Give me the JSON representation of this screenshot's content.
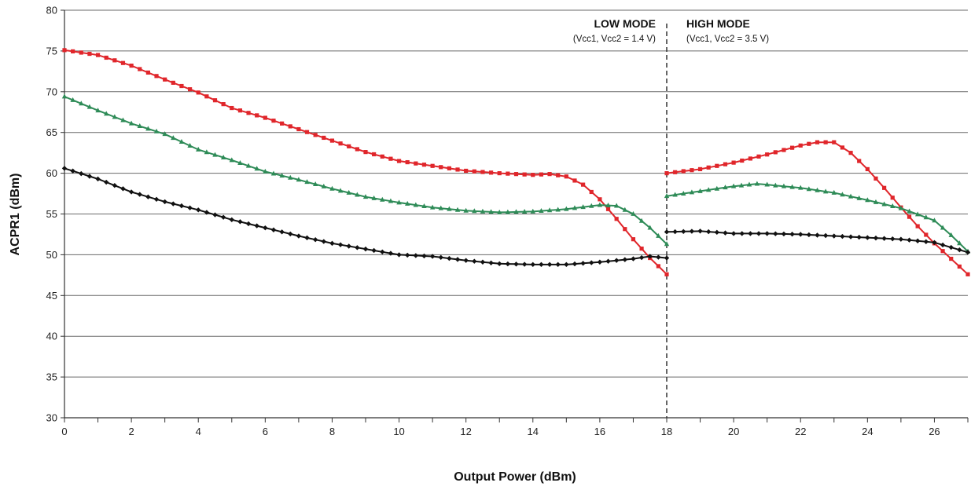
{
  "chart_data": {
    "type": "line",
    "xlabel": "Output Power (dBm)",
    "ylabel": "ACPR1 (dBm)",
    "xlim": [
      0,
      27
    ],
    "ylim": [
      30,
      80
    ],
    "xticks": [
      0,
      2,
      4,
      6,
      8,
      10,
      12,
      14,
      16,
      18,
      20,
      22,
      24,
      26
    ],
    "yticks": [
      30,
      35,
      40,
      45,
      50,
      55,
      60,
      65,
      70,
      75,
      80
    ],
    "grid": "horizontal",
    "mode_boundary_x": 18,
    "annotations": {
      "low_mode_title": "LOW MODE",
      "low_mode_sub": "(Vcc1, Vcc2 = 1.4 V)",
      "high_mode_title": "HIGH MODE",
      "high_mode_sub": "(Vcc1, Vcc2 = 3.5 V)"
    },
    "series": [
      {
        "color": "#e0262b",
        "marker": "square",
        "segments": [
          {
            "x": [
              0,
              1,
              2,
              3,
              4,
              5,
              6,
              7,
              8,
              9,
              10,
              11,
              12,
              13,
              14,
              14.5,
              15,
              15.5,
              16,
              16.5,
              17,
              17.5,
              18
            ],
            "y": [
              75.1,
              74.5,
              73.2,
              71.5,
              69.9,
              68.0,
              66.8,
              65.4,
              64.0,
              62.6,
              61.5,
              60.9,
              60.3,
              60.0,
              59.8,
              59.9,
              59.6,
              58.6,
              56.8,
              54.4,
              51.9,
              49.6,
              47.6
            ]
          },
          {
            "x": [
              18,
              19,
              20,
              21,
              22,
              22.5,
              23,
              23.5,
              24,
              24.5,
              25,
              25.5,
              26,
              26.5,
              27
            ],
            "y": [
              60.0,
              60.5,
              61.3,
              62.3,
              63.4,
              63.8,
              63.8,
              62.5,
              60.5,
              58.2,
              55.8,
              53.5,
              51.4,
              49.5,
              47.6
            ]
          }
        ]
      },
      {
        "color": "#2e8b57",
        "marker": "triangle",
        "segments": [
          {
            "x": [
              0,
              1,
              2,
              3,
              4,
              5,
              6,
              7,
              8,
              9,
              10,
              11,
              12,
              13,
              14,
              15,
              16,
              16.5,
              17,
              17.5,
              18
            ],
            "y": [
              69.4,
              67.7,
              66.1,
              64.8,
              62.9,
              61.6,
              60.2,
              59.2,
              58.1,
              57.1,
              56.4,
              55.8,
              55.4,
              55.2,
              55.3,
              55.6,
              56.1,
              56.0,
              55.0,
              53.3,
              51.3
            ]
          },
          {
            "x": [
              18,
              19,
              20,
              20.7,
              21,
              22,
              23,
              24,
              25,
              26,
              26.5,
              27
            ],
            "y": [
              57.2,
              57.8,
              58.4,
              58.7,
              58.6,
              58.2,
              57.6,
              56.7,
              55.7,
              54.2,
              52.4,
              50.4
            ]
          }
        ]
      },
      {
        "color": "#111111",
        "marker": "diamond",
        "segments": [
          {
            "x": [
              0,
              1,
              2,
              3,
              4,
              5,
              6,
              7,
              8,
              9,
              10,
              11,
              12,
              13,
              14,
              15,
              16,
              17,
              17.5,
              18
            ],
            "y": [
              60.6,
              59.3,
              57.7,
              56.5,
              55.5,
              54.3,
              53.3,
              52.3,
              51.4,
              50.7,
              50.0,
              49.8,
              49.3,
              48.9,
              48.8,
              48.8,
              49.1,
              49.5,
              49.8,
              49.6
            ]
          },
          {
            "x": [
              18,
              19,
              20,
              21,
              22,
              23,
              24,
              25,
              26,
              27
            ],
            "y": [
              52.8,
              52.9,
              52.6,
              52.6,
              52.5,
              52.3,
              52.1,
              51.9,
              51.5,
              50.3
            ]
          }
        ]
      }
    ]
  }
}
